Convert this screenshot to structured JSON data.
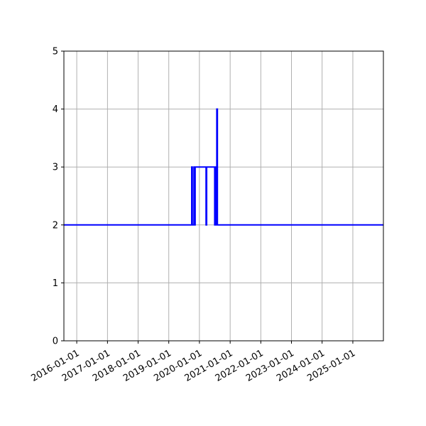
{
  "chart_data": {
    "type": "line",
    "title": "",
    "xlabel": "",
    "ylabel": "",
    "x_axis_type": "date",
    "xlim": [
      "2015-08-01",
      "2025-12-31"
    ],
    "ylim": [
      0,
      5
    ],
    "grid": true,
    "legend": "none",
    "x_tick_labels": [
      "2016-01-01",
      "2017-01-01",
      "2018-01-01",
      "2019-01-01",
      "2020-01-01",
      "2021-01-01",
      "2022-01-01",
      "2023-01-01",
      "2024-01-01",
      "2025-01-01"
    ],
    "y_tick_labels": [
      "0",
      "1",
      "2",
      "3",
      "4",
      "5"
    ],
    "series": [
      {
        "color": "#0000ff",
        "step": "post",
        "points": [
          {
            "x": "2015-08-01",
            "y": 2
          },
          {
            "x": "2019-10-01",
            "y": 3
          },
          {
            "x": "2019-10-08",
            "y": 2
          },
          {
            "x": "2019-10-28",
            "y": 3
          },
          {
            "x": "2019-11-04",
            "y": 2
          },
          {
            "x": "2019-11-11",
            "y": 3
          },
          {
            "x": "2020-03-20",
            "y": 2
          },
          {
            "x": "2020-03-27",
            "y": 3
          },
          {
            "x": "2020-07-01",
            "y": 2
          },
          {
            "x": "2020-07-06",
            "y": 3
          },
          {
            "x": "2020-07-12",
            "y": 2
          },
          {
            "x": "2020-07-18",
            "y": 3
          },
          {
            "x": "2020-07-26",
            "y": 4
          },
          {
            "x": "2020-08-02",
            "y": 2
          },
          {
            "x": "2025-12-31",
            "y": 2
          }
        ]
      }
    ]
  }
}
